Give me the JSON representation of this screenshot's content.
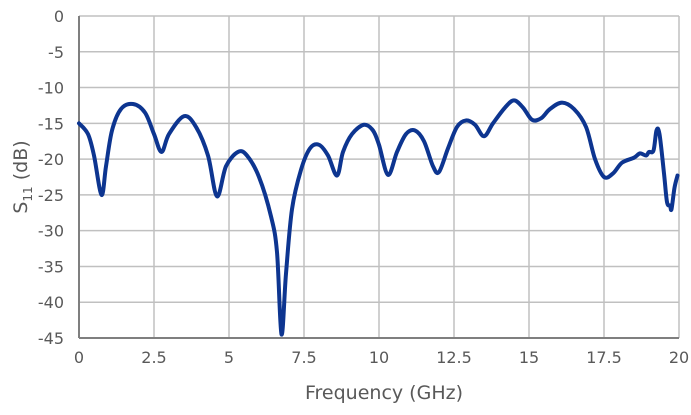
{
  "chart_data": {
    "type": "line",
    "title": "",
    "xlabel": "Frequency (GHz)",
    "ylabel": {
      "main": "S",
      "sub": "11",
      "unit": " (dB)"
    },
    "xlim": [
      0,
      20
    ],
    "ylim": [
      -45,
      0
    ],
    "xticks": [
      0,
      2.5,
      5,
      7.5,
      10,
      12.5,
      15,
      17.5,
      20
    ],
    "xtick_labels": [
      "0",
      "2.5",
      "5",
      "7.5",
      "10",
      "12.5",
      "15",
      "17.5",
      "20"
    ],
    "yticks": [
      0,
      -5,
      -10,
      -15,
      -20,
      -25,
      -30,
      -35,
      -40,
      -45
    ],
    "ytick_labels": [
      "0",
      "-5",
      "-10",
      "-15",
      "-20",
      "-25",
      "-30",
      "-35",
      "-40",
      "-45"
    ],
    "grid": true,
    "series": [
      {
        "color": "#0d3590",
        "x": [
          0,
          0.3,
          0.5,
          0.75,
          0.9,
          1.1,
          1.4,
          1.8,
          2.2,
          2.5,
          2.75,
          3.0,
          3.5,
          3.9,
          4.3,
          4.6,
          4.9,
          5.3,
          5.6,
          6.0,
          6.4,
          6.6,
          6.75,
          6.9,
          7.1,
          7.4,
          7.7,
          8.0,
          8.3,
          8.6,
          8.8,
          9.1,
          9.5,
          9.8,
          10.0,
          10.3,
          10.6,
          10.9,
          11.2,
          11.5,
          11.8,
          12.0,
          12.3,
          12.6,
          12.9,
          13.2,
          13.5,
          13.8,
          14.2,
          14.5,
          14.8,
          15.1,
          15.4,
          15.7,
          16.1,
          16.5,
          16.9,
          17.2,
          17.5,
          17.8,
          18.1,
          18.5,
          18.7,
          18.9,
          19.0,
          19.15,
          19.25,
          19.35,
          19.5,
          19.6,
          19.7,
          19.75,
          19.85,
          19.95
        ],
        "y": [
          -15,
          -16.5,
          -19.5,
          -25,
          -21,
          -16,
          -13,
          -12.3,
          -13.5,
          -16.5,
          -19,
          -16.5,
          -14,
          -15.5,
          -19.5,
          -25.2,
          -21,
          -19,
          -19.5,
          -22.5,
          -28,
          -33,
          -44.5,
          -36,
          -27,
          -21.5,
          -18.5,
          -18,
          -19.5,
          -22.3,
          -19,
          -16.5,
          -15.2,
          -16,
          -18,
          -22.2,
          -19,
          -16.5,
          -16,
          -17.5,
          -21,
          -21.8,
          -18.5,
          -15.5,
          -14.6,
          -15.2,
          -16.8,
          -15,
          -12.8,
          -11.8,
          -12.8,
          -14.5,
          -14.3,
          -13,
          -12.1,
          -13,
          -15.5,
          -20,
          -22.5,
          -22,
          -20.5,
          -19.8,
          -19.2,
          -19.5,
          -19.0,
          -18.8,
          -16,
          -16.5,
          -22,
          -26,
          -26.5,
          -27,
          -24,
          -22.3
        ]
      }
    ]
  }
}
